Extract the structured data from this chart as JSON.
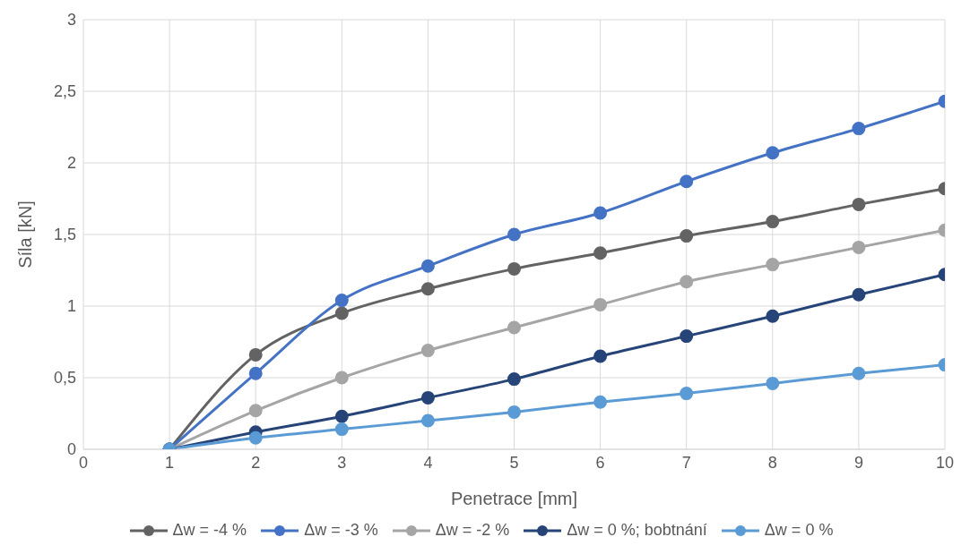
{
  "chart_data": {
    "type": "line",
    "xlabel": "Penetrace [mm]",
    "ylabel": "Síla [kN]",
    "x": [
      1,
      2,
      3,
      4,
      5,
      6,
      7,
      8,
      9,
      10
    ],
    "xlim": [
      0,
      10
    ],
    "xticks": [
      0,
      1,
      2,
      3,
      4,
      5,
      6,
      7,
      8,
      9,
      10
    ],
    "ylim": [
      0,
      3
    ],
    "yticks": [
      0,
      {
        "value": 0.5,
        "label": "0,5"
      },
      1,
      {
        "value": 1.5,
        "label": "1,5"
      },
      2,
      {
        "value": 2.5,
        "label": "2,5"
      },
      3
    ],
    "grid": true,
    "legend": "bottom",
    "marker": "circle",
    "line_style": "solid",
    "series": [
      {
        "name": "Δw = -4 %",
        "color": "#636363",
        "values": [
          0,
          0.66,
          0.95,
          1.12,
          1.26,
          1.37,
          1.49,
          1.59,
          1.71,
          1.82
        ]
      },
      {
        "name": "Δw = -3 %",
        "color": "#4472c4",
        "values": [
          0,
          0.53,
          1.04,
          1.28,
          1.5,
          1.65,
          1.87,
          2.07,
          2.24,
          2.43
        ]
      },
      {
        "name": "Δw = -2 %",
        "color": "#a5a5a5",
        "values": [
          0,
          0.27,
          0.5,
          0.69,
          0.85,
          1.01,
          1.17,
          1.29,
          1.41,
          1.53
        ]
      },
      {
        "name": "Δw = 0 %; bobtnání",
        "color": "#264478",
        "values": [
          0,
          0.12,
          0.23,
          0.36,
          0.49,
          0.65,
          0.79,
          0.93,
          1.08,
          1.22
        ]
      },
      {
        "name": "Δw = 0 %",
        "color": "#5b9bd5",
        "values": [
          0,
          0.08,
          0.14,
          0.2,
          0.26,
          0.33,
          0.39,
          0.46,
          0.53,
          0.59
        ]
      }
    ]
  }
}
